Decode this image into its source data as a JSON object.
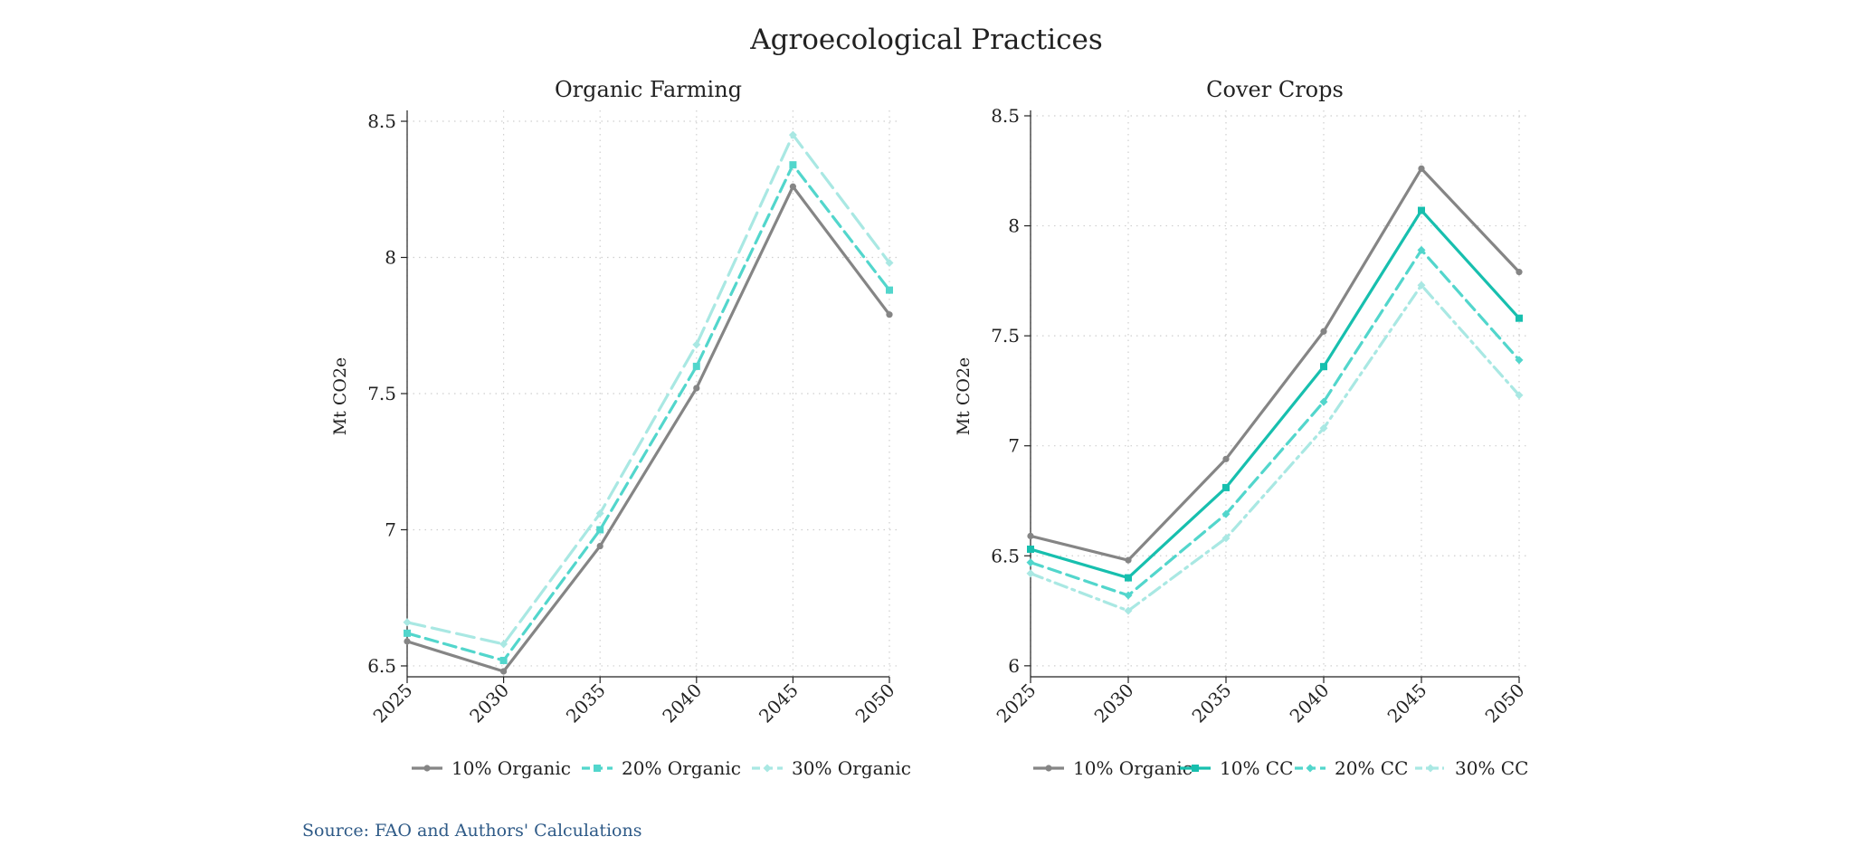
{
  "figure": {
    "title": "Agroecological Practices",
    "source": "Source: FAO and Authors' Calculations"
  },
  "colors": {
    "grey": "#858585",
    "teal_dark": "#17bfae",
    "teal_mid": "#52d6cc",
    "teal_light": "#a9e8e3",
    "grid": "#cfcfcf",
    "axis": "#222222",
    "source_text": "#2e5a87"
  },
  "chart_data": [
    {
      "type": "line",
      "title": "Organic Farming",
      "xlabel": "",
      "ylabel": "Mt CO2e",
      "x": [
        2025,
        2030,
        2035,
        2040,
        2045,
        2050
      ],
      "xticks": [
        "2025",
        "2030",
        "2035",
        "2040",
        "2045",
        "2050"
      ],
      "yticks": [
        6.5,
        7,
        7.5,
        8,
        8.5
      ],
      "ytick_labels": [
        "6.5",
        "7",
        "7.5",
        "8",
        "8.5"
      ],
      "ylim": [
        6.46,
        8.52
      ],
      "grid": true,
      "legend_position": "bottom",
      "series": [
        {
          "name": "10% Organic",
          "values": [
            6.59,
            6.48,
            6.94,
            7.52,
            8.26,
            7.79
          ],
          "color": "#858585",
          "dash": "solid",
          "marker": "circle"
        },
        {
          "name": "20% Organic",
          "values": [
            6.62,
            6.52,
            7.0,
            7.6,
            8.34,
            7.88
          ],
          "color": "#52d6cc",
          "dash": "dashed",
          "marker": "square"
        },
        {
          "name": "30% Organic",
          "values": [
            6.66,
            6.58,
            7.06,
            7.68,
            8.45,
            7.98
          ],
          "color": "#a9e8e3",
          "dash": "longdash",
          "marker": "diamond"
        }
      ]
    },
    {
      "type": "line",
      "title": "Cover Crops",
      "xlabel": "",
      "ylabel": "Mt CO2e",
      "x": [
        2025,
        2030,
        2035,
        2040,
        2045,
        2050
      ],
      "xticks": [
        "2025",
        "2030",
        "2035",
        "2040",
        "2045",
        "2050"
      ],
      "yticks": [
        6,
        6.5,
        7,
        7.5,
        8,
        8.5
      ],
      "ytick_labels": [
        "6",
        "6.5",
        "7",
        "7.5",
        "8",
        "8.5"
      ],
      "ylim": [
        5.95,
        8.5
      ],
      "grid": true,
      "legend_position": "bottom",
      "series": [
        {
          "name": "10% Organic",
          "values": [
            6.59,
            6.48,
            6.94,
            7.52,
            8.26,
            7.79
          ],
          "color": "#858585",
          "dash": "solid",
          "marker": "circle"
        },
        {
          "name": "10% CC",
          "values": [
            6.53,
            6.4,
            6.81,
            7.36,
            8.07,
            7.58
          ],
          "color": "#17bfae",
          "dash": "solid",
          "marker": "square"
        },
        {
          "name": "20% CC",
          "values": [
            6.47,
            6.32,
            6.69,
            7.2,
            7.89,
            7.39
          ],
          "color": "#52d6cc",
          "dash": "dashed",
          "marker": "diamond"
        },
        {
          "name": "30% CC",
          "values": [
            6.42,
            6.25,
            6.58,
            7.08,
            7.73,
            7.23
          ],
          "color": "#a9e8e3",
          "dash": "dashdot",
          "marker": "diamond"
        }
      ]
    }
  ]
}
